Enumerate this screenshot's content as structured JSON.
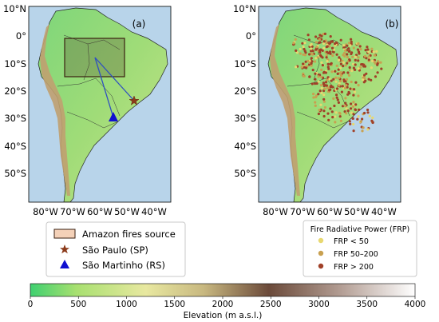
{
  "panel_a": {
    "label": "(a)",
    "lat_ticks": [
      "10°N",
      "0°",
      "10°S",
      "20°S",
      "30°S",
      "40°S",
      "50°S"
    ],
    "lon_ticks": [
      "80°W",
      "70°W",
      "60°W",
      "50°W",
      "40°W"
    ]
  },
  "panel_b": {
    "label": "(b)",
    "lat_ticks": [
      "10°N",
      "0°",
      "10°S",
      "20°S",
      "30°S",
      "40°S",
      "50°S"
    ],
    "lon_ticks": [
      "80°W",
      "70°W",
      "60°W",
      "50°W",
      "40°W"
    ]
  },
  "legend_a": {
    "items": [
      {
        "label": "Amazon fires source",
        "symbol": "rectangle",
        "color": "#f4d1b8"
      },
      {
        "label": "São Paulo (SP)",
        "symbol": "star",
        "color": "#8b3a1a"
      },
      {
        "label": "São Martinho (RS)",
        "symbol": "triangle",
        "color": "#1010d0"
      }
    ]
  },
  "legend_b": {
    "title": "Fire Radiative Power (FRP)",
    "items": [
      {
        "label": "FRP < 50",
        "color": "#e8d870"
      },
      {
        "label": "FRP 50–200",
        "color": "#c8a050"
      },
      {
        "label": "FRP > 200",
        "color": "#a04028"
      }
    ]
  },
  "colorbar": {
    "label": "Elevation (m a.s.l.)",
    "ticks": [
      "0",
      "500",
      "1000",
      "1500",
      "2000",
      "2500",
      "3000",
      "3500",
      "4000"
    ],
    "range": [
      0,
      4000
    ],
    "colors": [
      "#3fd070",
      "#a8e070",
      "#e8e8a0",
      "#c8b880",
      "#6b4a3a",
      "#b09a90",
      "#ffffff"
    ]
  },
  "colors": {
    "ocean": "#b8d4ea",
    "land_low": "#6dd080",
    "land_mid": "#b8e080",
    "andes": "#c0a070",
    "fire_box": "#4a3020",
    "route_line": "#3050c0"
  }
}
